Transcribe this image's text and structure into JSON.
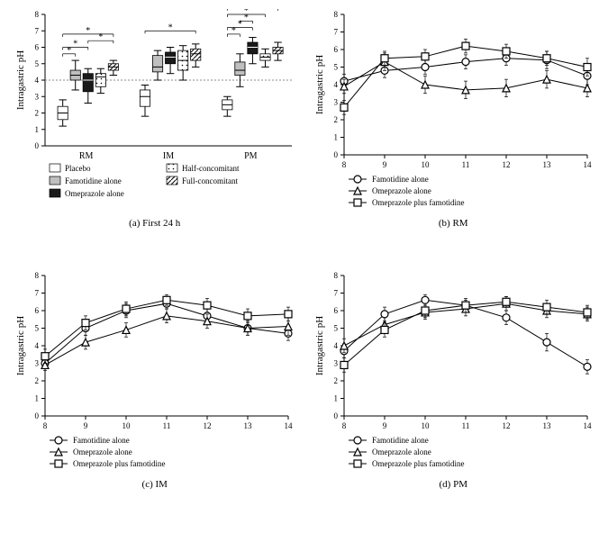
{
  "panels": {
    "a": {
      "type": "boxplot",
      "caption": "(a)  First 24 h",
      "ylabel": "Intragastric pH",
      "ylim": [
        0,
        8
      ],
      "ytick_step": 1,
      "groups": [
        "RM",
        "IM",
        "PM"
      ],
      "series": [
        {
          "name": "Placebo",
          "fill": "#ffffff",
          "pattern": "none"
        },
        {
          "name": "Famotidine alone",
          "fill": "#bfbfbf",
          "pattern": "none"
        },
        {
          "name": "Omeprazole alone",
          "fill": "#1a1a1a",
          "pattern": "none"
        },
        {
          "name": "Half-concomitant",
          "fill": "#ffffff",
          "pattern": "dots"
        },
        {
          "name": "Full-concomitant",
          "fill": "#ffffff",
          "pattern": "hatch"
        }
      ],
      "data": {
        "RM": [
          {
            "wlo": 1.2,
            "q1": 1.6,
            "med": 2.0,
            "q3": 2.4,
            "whi": 2.8
          },
          {
            "wlo": 3.4,
            "q1": 4.0,
            "med": 4.3,
            "q3": 4.6,
            "whi": 5.2
          },
          {
            "wlo": 2.6,
            "q1": 3.3,
            "med": 4.0,
            "q3": 4.4,
            "whi": 4.7
          },
          {
            "wlo": 3.2,
            "q1": 3.6,
            "med": 4.2,
            "q3": 4.4,
            "whi": 4.7
          },
          {
            "wlo": 4.3,
            "q1": 4.6,
            "med": 4.8,
            "q3": 5.0,
            "whi": 5.2
          }
        ],
        "IM": [
          {
            "wlo": 1.8,
            "q1": 2.4,
            "med": 3.0,
            "q3": 3.4,
            "whi": 3.7
          },
          {
            "wlo": 4.0,
            "q1": 4.5,
            "med": 4.8,
            "q3": 5.5,
            "whi": 5.8
          },
          {
            "wlo": 4.4,
            "q1": 5.0,
            "med": 5.4,
            "q3": 5.7,
            "whi": 6.0
          },
          {
            "wlo": 4.0,
            "q1": 4.6,
            "med": 5.2,
            "q3": 5.8,
            "whi": 6.1
          },
          {
            "wlo": 4.8,
            "q1": 5.2,
            "med": 5.6,
            "q3": 5.9,
            "whi": 6.2
          }
        ],
        "PM": [
          {
            "wlo": 1.8,
            "q1": 2.2,
            "med": 2.5,
            "q3": 2.8,
            "whi": 3.0
          },
          {
            "wlo": 3.6,
            "q1": 4.3,
            "med": 4.6,
            "q3": 5.1,
            "whi": 5.6
          },
          {
            "wlo": 5.0,
            "q1": 5.6,
            "med": 6.0,
            "q3": 6.3,
            "whi": 6.6
          },
          {
            "wlo": 4.8,
            "q1": 5.2,
            "med": 5.4,
            "q3": 5.6,
            "whi": 5.9
          },
          {
            "wlo": 5.2,
            "q1": 5.6,
            "med": 5.8,
            "q3": 6.0,
            "whi": 6.3
          }
        ]
      },
      "sigbars": {
        "RM": [
          [
            0,
            1,
            5.6
          ],
          [
            0,
            2,
            6.0
          ],
          [
            2,
            4,
            6.4
          ],
          [
            0,
            4,
            6.8
          ]
        ],
        "IM": [
          [
            0,
            4,
            7.0
          ]
        ],
        "PM": [
          [
            0,
            1,
            6.8
          ],
          [
            0,
            2,
            7.2
          ],
          [
            1,
            2,
            7.6
          ],
          [
            0,
            3,
            8.0
          ],
          [
            0,
            4,
            8.4
          ]
        ]
      },
      "label_fontsize": 11,
      "tick_fontsize": 9,
      "dotted_ref": 4,
      "legend": [
        [
          "Placebo",
          "Half-concomitant"
        ],
        [
          "Famotidine alone",
          "Full-concomitant"
        ],
        [
          "Omeprazole alone",
          ""
        ]
      ]
    },
    "b": {
      "type": "line",
      "caption": "(b)  RM",
      "ylabel": "Intragastric pH",
      "ylim": [
        0,
        8
      ],
      "ytick_step": 1,
      "xlim": [
        8,
        14
      ],
      "xtick_step": 1,
      "series": [
        {
          "name": "Famotidine alone",
          "marker": "circle",
          "y": [
            4.2,
            4.8,
            5.0,
            5.3,
            5.5,
            5.4,
            4.5
          ],
          "err": [
            0.4,
            0.4,
            0.4,
            0.4,
            0.4,
            0.5,
            0.5
          ]
        },
        {
          "name": "Omeprazole alone",
          "marker": "triangle",
          "y": [
            3.9,
            5.3,
            4.0,
            3.7,
            3.8,
            4.3,
            3.8
          ],
          "err": [
            0.4,
            0.5,
            0.5,
            0.5,
            0.5,
            0.5,
            0.5
          ]
        },
        {
          "name": "Omeprazole plus famotidine",
          "marker": "square",
          "y": [
            2.7,
            5.5,
            5.6,
            6.2,
            5.9,
            5.5,
            5.0
          ],
          "err": [
            0.4,
            0.4,
            0.4,
            0.4,
            0.4,
            0.4,
            0.5
          ]
        }
      ]
    },
    "c": {
      "type": "line",
      "caption": "(c)  IM",
      "ylabel": "Intragastric pH",
      "ylim": [
        0,
        8
      ],
      "ytick_step": 1,
      "xlim": [
        8,
        14
      ],
      "xtick_step": 1,
      "series": [
        {
          "name": "Famotidine alone",
          "marker": "circle",
          "y": [
            3.0,
            5.0,
            6.0,
            6.4,
            5.7,
            5.0,
            4.7
          ],
          "err": [
            0.3,
            0.4,
            0.4,
            0.3,
            0.4,
            0.4,
            0.4
          ]
        },
        {
          "name": "Omeprazole alone",
          "marker": "triangle",
          "y": [
            2.9,
            4.2,
            4.9,
            5.7,
            5.4,
            5.0,
            5.1
          ],
          "err": [
            0.3,
            0.4,
            0.4,
            0.4,
            0.4,
            0.4,
            0.5
          ]
        },
        {
          "name": "Omeprazole plus famotidine",
          "marker": "square",
          "y": [
            3.4,
            5.3,
            6.1,
            6.6,
            6.3,
            5.7,
            5.8
          ],
          "err": [
            0.4,
            0.4,
            0.4,
            0.3,
            0.4,
            0.4,
            0.4
          ]
        }
      ]
    },
    "d": {
      "type": "line",
      "caption": "(d)  PM",
      "ylabel": "Intragastric pH",
      "ylim": [
        0,
        8
      ],
      "ytick_step": 1,
      "xlim": [
        8,
        14
      ],
      "xtick_step": 1,
      "series": [
        {
          "name": "Famotidine alone",
          "marker": "circle",
          "y": [
            3.7,
            5.8,
            6.6,
            6.3,
            5.6,
            4.2,
            2.8
          ],
          "err": [
            0.4,
            0.4,
            0.3,
            0.3,
            0.4,
            0.5,
            0.4
          ]
        },
        {
          "name": "Omeprazole alone",
          "marker": "triangle",
          "y": [
            4.0,
            5.2,
            5.9,
            6.1,
            6.4,
            6.0,
            5.8
          ],
          "err": [
            0.4,
            0.4,
            0.4,
            0.4,
            0.4,
            0.4,
            0.4
          ]
        },
        {
          "name": "Omeprazole plus famotidine",
          "marker": "square",
          "y": [
            2.9,
            4.9,
            6.0,
            6.3,
            6.5,
            6.2,
            5.9
          ],
          "err": [
            0.4,
            0.4,
            0.4,
            0.4,
            0.3,
            0.4,
            0.4
          ]
        }
      ]
    }
  },
  "colors": {
    "bg": "#ffffff",
    "axis": "#000000",
    "whisker": "#000000",
    "medLine": "#ffffff",
    "medLineDark": "#000000"
  }
}
